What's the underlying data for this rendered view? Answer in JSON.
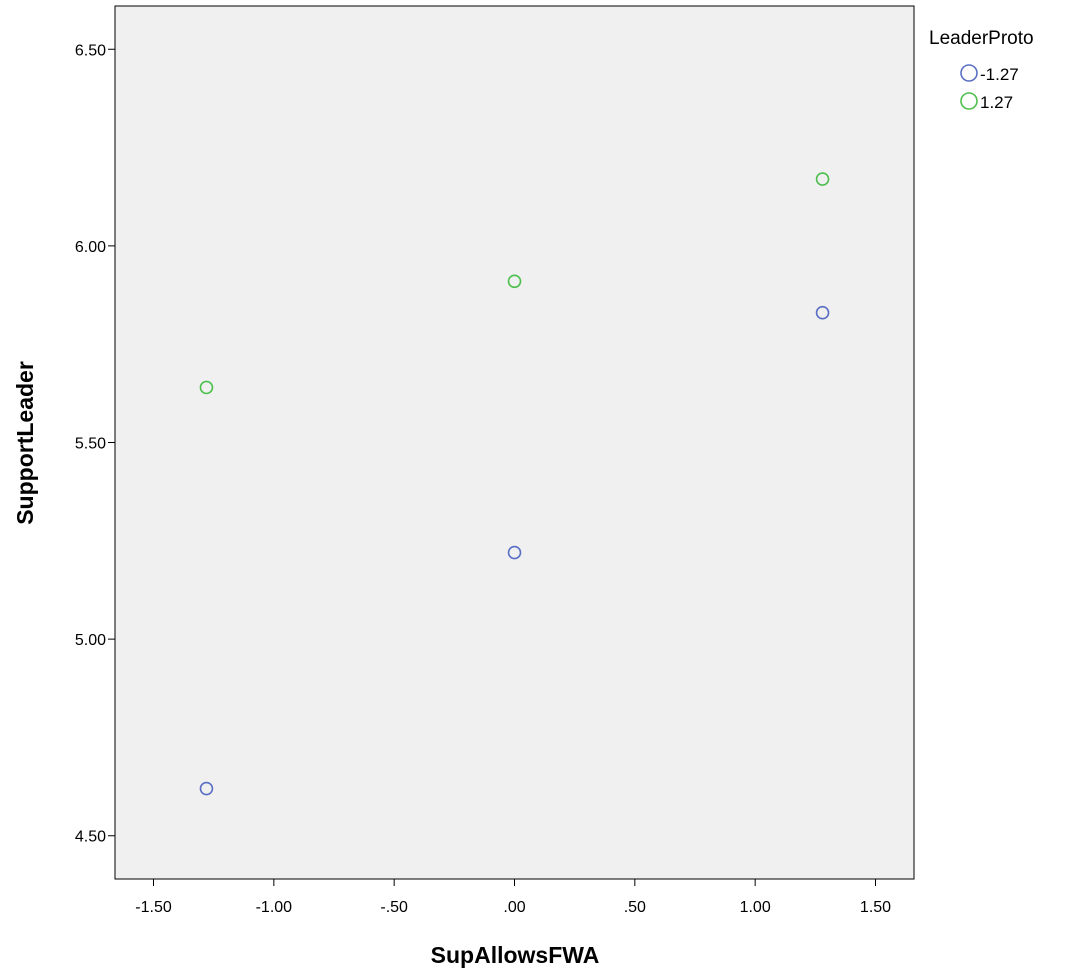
{
  "chart_data": {
    "type": "scatter",
    "title": "",
    "xlabel": "SupAllowsFWA",
    "ylabel": "SupportLeader",
    "xlim": [
      -1.66,
      1.66
    ],
    "ylim": [
      4.39,
      6.61
    ],
    "x_ticks": [
      -1.5,
      -1.0,
      -0.5,
      0.0,
      0.5,
      1.0,
      1.5
    ],
    "x_tick_labels": [
      "-1.50",
      "-1.00",
      "-.50",
      ".00",
      ".50",
      "1.00",
      "1.50"
    ],
    "y_ticks": [
      4.5,
      5.0,
      5.5,
      6.0,
      6.5
    ],
    "y_tick_labels": [
      "4.50",
      "5.00",
      "5.50",
      "6.00",
      "6.50"
    ],
    "grid": false,
    "legend": {
      "title": "LeaderProto",
      "placement": "right"
    },
    "series": [
      {
        "name": "-1.27",
        "color": "#5a6fc4",
        "marker": "open-circle",
        "points": [
          {
            "x": -1.28,
            "y": 4.62
          },
          {
            "x": 0.0,
            "y": 5.22
          },
          {
            "x": 1.28,
            "y": 5.83
          }
        ]
      },
      {
        "name": "1.27",
        "color": "#4dbf4d",
        "marker": "open-circle",
        "points": [
          {
            "x": -1.28,
            "y": 5.64
          },
          {
            "x": 0.0,
            "y": 5.91
          },
          {
            "x": 1.28,
            "y": 6.17
          }
        ]
      }
    ],
    "plot_background": "#f0f0f0"
  }
}
